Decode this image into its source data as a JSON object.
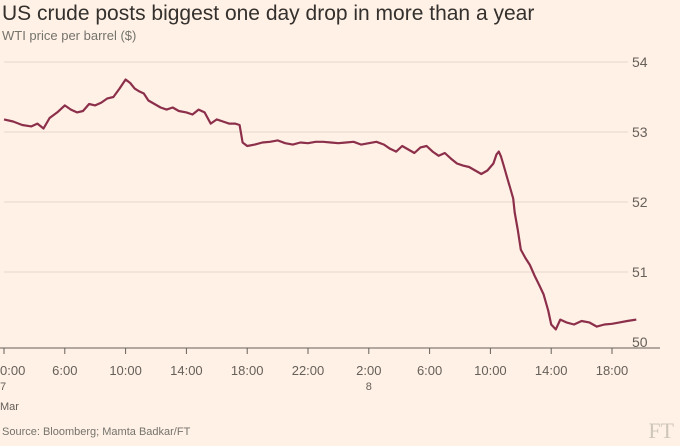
{
  "title": "US crude posts biggest one day drop in more than a year",
  "subtitle": "WTI price per barrel ($)",
  "source": "Source: Bloomberg; Mamta Badkar/FT",
  "logo_text": "FT",
  "colors": {
    "background": "#fff1e5",
    "line": "#8c2f4b",
    "grid": "#e4d8cb",
    "axis": "#66605a",
    "text": "#66605a"
  },
  "chart_data": {
    "type": "line",
    "title": "US crude posts biggest one day drop in more than a year",
    "subtitle": "WTI price per barrel ($)",
    "xlabel": "",
    "ylabel": "",
    "ylim": [
      50,
      54
    ],
    "y_ticks": [
      50,
      51,
      52,
      53,
      54
    ],
    "y_axis_position": "right",
    "grid": true,
    "xlim": [
      0,
      43
    ],
    "x_ticks": [
      {
        "hour": 0,
        "label": "0:00",
        "sub": "7",
        "sub2": "Mar"
      },
      {
        "hour": 4,
        "label": "6:00"
      },
      {
        "hour": 8,
        "label": "10:00"
      },
      {
        "hour": 12,
        "label": "14:00"
      },
      {
        "hour": 16,
        "label": "18:00"
      },
      {
        "hour": 20,
        "label": "22:00"
      },
      {
        "hour": 24,
        "label": "2:00",
        "sub": "8"
      },
      {
        "hour": 28,
        "label": "6:00"
      },
      {
        "hour": 32,
        "label": "10:00"
      },
      {
        "hour": 36,
        "label": "14:00"
      },
      {
        "hour": 40,
        "label": "18:00"
      }
    ],
    "series": [
      {
        "values": [
          [
            0.0,
            53.18
          ],
          [
            0.6,
            53.15
          ],
          [
            1.2,
            53.1
          ],
          [
            1.8,
            53.08
          ],
          [
            2.2,
            53.12
          ],
          [
            2.6,
            53.05
          ],
          [
            3.0,
            53.2
          ],
          [
            3.5,
            53.28
          ],
          [
            4.0,
            53.38
          ],
          [
            4.4,
            53.32
          ],
          [
            4.8,
            53.28
          ],
          [
            5.2,
            53.3
          ],
          [
            5.6,
            53.4
          ],
          [
            6.0,
            53.38
          ],
          [
            6.4,
            53.42
          ],
          [
            6.8,
            53.48
          ],
          [
            7.2,
            53.5
          ],
          [
            7.6,
            53.62
          ],
          [
            8.0,
            53.75
          ],
          [
            8.3,
            53.7
          ],
          [
            8.6,
            53.62
          ],
          [
            8.9,
            53.58
          ],
          [
            9.2,
            53.55
          ],
          [
            9.5,
            53.45
          ],
          [
            9.9,
            53.4
          ],
          [
            10.3,
            53.35
          ],
          [
            10.7,
            53.32
          ],
          [
            11.1,
            53.35
          ],
          [
            11.5,
            53.3
          ],
          [
            12.0,
            53.28
          ],
          [
            12.4,
            53.25
          ],
          [
            12.8,
            53.32
          ],
          [
            13.2,
            53.28
          ],
          [
            13.6,
            53.12
          ],
          [
            14.0,
            53.18
          ],
          [
            14.4,
            53.15
          ],
          [
            14.8,
            53.12
          ],
          [
            15.2,
            53.12
          ],
          [
            15.5,
            53.1
          ],
          [
            15.7,
            52.85
          ],
          [
            16.0,
            52.8
          ],
          [
            16.5,
            52.82
          ],
          [
            17.0,
            52.85
          ],
          [
            17.5,
            52.86
          ],
          [
            18.0,
            52.88
          ],
          [
            18.5,
            52.84
          ],
          [
            19.0,
            52.82
          ],
          [
            19.5,
            52.85
          ],
          [
            20.0,
            52.84
          ],
          [
            20.5,
            52.86
          ],
          [
            21.0,
            52.86
          ],
          [
            21.5,
            52.85
          ],
          [
            22.0,
            52.84
          ],
          [
            22.5,
            52.85
          ],
          [
            23.0,
            52.86
          ],
          [
            23.5,
            52.82
          ],
          [
            24.0,
            52.84
          ],
          [
            24.5,
            52.86
          ],
          [
            25.0,
            52.82
          ],
          [
            25.4,
            52.76
          ],
          [
            25.8,
            52.72
          ],
          [
            26.2,
            52.8
          ],
          [
            26.6,
            52.75
          ],
          [
            27.0,
            52.7
          ],
          [
            27.4,
            52.78
          ],
          [
            27.8,
            52.8
          ],
          [
            28.2,
            52.72
          ],
          [
            28.6,
            52.66
          ],
          [
            29.0,
            52.7
          ],
          [
            29.4,
            52.62
          ],
          [
            29.8,
            52.55
          ],
          [
            30.2,
            52.52
          ],
          [
            30.6,
            52.5
          ],
          [
            31.0,
            52.45
          ],
          [
            31.4,
            52.4
          ],
          [
            31.8,
            52.45
          ],
          [
            32.0,
            52.5
          ],
          [
            32.2,
            52.55
          ],
          [
            32.4,
            52.68
          ],
          [
            32.55,
            52.72
          ],
          [
            32.7,
            52.65
          ],
          [
            32.9,
            52.5
          ],
          [
            33.1,
            52.35
          ],
          [
            33.3,
            52.2
          ],
          [
            33.5,
            52.05
          ],
          [
            33.6,
            51.85
          ],
          [
            33.8,
            51.6
          ],
          [
            34.0,
            51.32
          ],
          [
            34.3,
            51.2
          ],
          [
            34.6,
            51.1
          ],
          [
            34.9,
            50.95
          ],
          [
            35.2,
            50.82
          ],
          [
            35.5,
            50.68
          ],
          [
            35.8,
            50.45
          ],
          [
            36.0,
            50.25
          ],
          [
            36.3,
            50.18
          ],
          [
            36.6,
            50.32
          ],
          [
            37.0,
            50.28
          ],
          [
            37.5,
            50.25
          ],
          [
            38.0,
            50.3
          ],
          [
            38.5,
            50.28
          ],
          [
            39.0,
            50.22
          ],
          [
            39.5,
            50.25
          ],
          [
            40.0,
            50.26
          ],
          [
            40.5,
            50.28
          ],
          [
            41.0,
            50.3
          ],
          [
            41.6,
            50.32
          ]
        ]
      }
    ]
  }
}
